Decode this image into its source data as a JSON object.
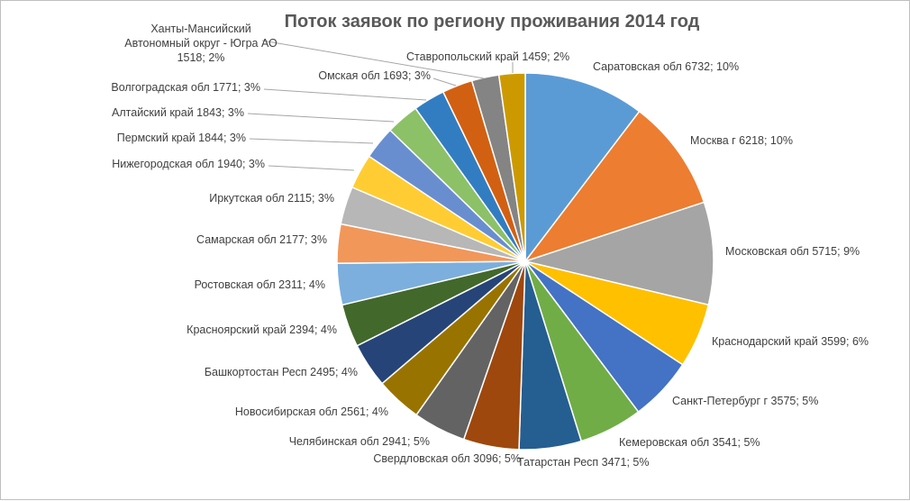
{
  "chart_data": {
    "type": "pie",
    "title": "Поток заявок по региону проживания 2014 год",
    "slices": [
      {
        "label": "Саратовская обл",
        "value": 6732,
        "percent": "10%",
        "color": "#5b9bd5"
      },
      {
        "label": "Москва г",
        "value": 6218,
        "percent": "10%",
        "color": "#ed7d31"
      },
      {
        "label": "Московская обл",
        "value": 5715,
        "percent": "9%",
        "color": "#a5a5a5"
      },
      {
        "label": "Краснодарский край",
        "value": 3599,
        "percent": "6%",
        "color": "#ffc000"
      },
      {
        "label": "Санкт-Петербург г",
        "value": 3575,
        "percent": "5%",
        "color": "#4472c4"
      },
      {
        "label": "Кемеровская обл",
        "value": 3541,
        "percent": "5%",
        "color": "#70ad47"
      },
      {
        "label": "Татарстан Респ",
        "value": 3471,
        "percent": "5%",
        "color": "#255e91"
      },
      {
        "label": "Свердловская обл",
        "value": 3096,
        "percent": "5%",
        "color": "#9e480e"
      },
      {
        "label": "Челябинская обл",
        "value": 2941,
        "percent": "5%",
        "color": "#636363"
      },
      {
        "label": "Новосибирская обл",
        "value": 2561,
        "percent": "4%",
        "color": "#997300"
      },
      {
        "label": "Башкортостан Респ",
        "value": 2495,
        "percent": "4%",
        "color": "#264478"
      },
      {
        "label": "Красноярский край",
        "value": 2394,
        "percent": "4%",
        "color": "#43682b"
      },
      {
        "label": "Ростовская обл",
        "value": 2311,
        "percent": "4%",
        "color": "#7cafdd"
      },
      {
        "label": "Самарская обл",
        "value": 2177,
        "percent": "3%",
        "color": "#f1975a"
      },
      {
        "label": "Иркутская обл",
        "value": 2115,
        "percent": "3%",
        "color": "#b7b7b7"
      },
      {
        "label": "Нижегородская обл",
        "value": 1940,
        "percent": "3%",
        "color": "#ffcd33"
      },
      {
        "label": "Пермский край",
        "value": 1844,
        "percent": "3%",
        "color": "#698ed0"
      },
      {
        "label": "Алтайский край",
        "value": 1843,
        "percent": "3%",
        "color": "#8cc168"
      },
      {
        "label": "Волгоградская обл",
        "value": 1771,
        "percent": "3%",
        "color": "#327dc2"
      },
      {
        "label": "Омская обл",
        "value": 1693,
        "percent": "3%",
        "color": "#d26012"
      },
      {
        "label": "Ханты-Мансийский Автономный округ - Югра АО",
        "value": 1518,
        "percent": "2%",
        "color": "#848484"
      },
      {
        "label": "Ставропольский край",
        "value": 1459,
        "percent": "2%",
        "color": "#cc9a00"
      }
    ]
  }
}
